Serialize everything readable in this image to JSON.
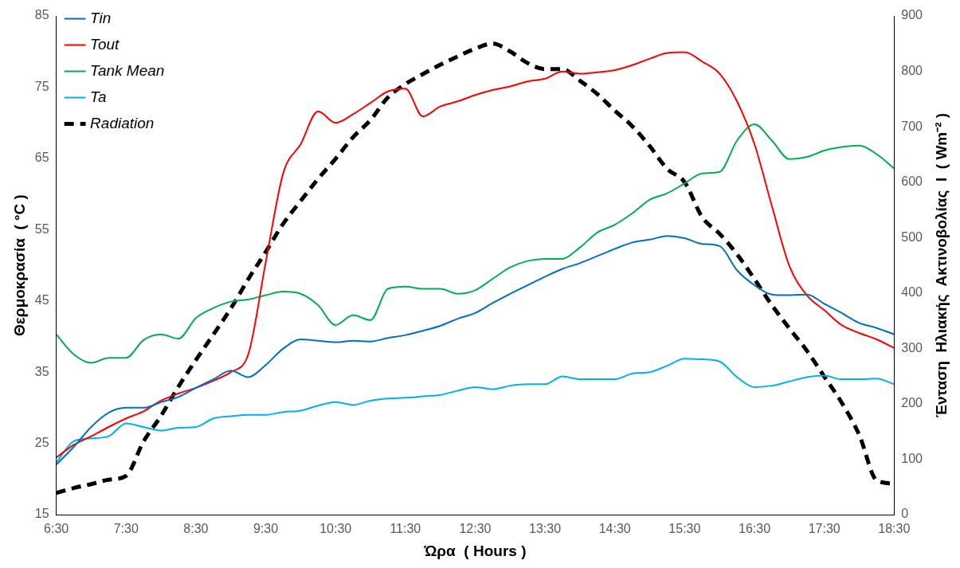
{
  "chart_data": {
    "type": "line",
    "xlabel": "Ώρα  ( Hours )",
    "ylabel": "Θερμοκρασία  ( °C )",
    "y2label": "Ένταση  Ηλιακής  Ακτινοβολίας  I  ( Wm⁻² )",
    "x": [
      6.5,
      6.75,
      7,
      7.25,
      7.5,
      7.75,
      8,
      8.25,
      8.5,
      8.75,
      9,
      9.25,
      9.5,
      9.75,
      10,
      10.25,
      10.5,
      10.75,
      11,
      11.25,
      11.5,
      11.75,
      12,
      12.25,
      12.5,
      12.75,
      13,
      13.25,
      13.5,
      13.75,
      14,
      14.25,
      14.5,
      14.75,
      15,
      15.25,
      15.5,
      15.75,
      16,
      16.25,
      16.5,
      16.75,
      17,
      17.25,
      17.5,
      17.75,
      18,
      18.25,
      18.5
    ],
    "xlim": [
      6.5,
      18.5
    ],
    "xticks": [
      {
        "value": 6.5,
        "label": "6:30"
      },
      {
        "value": 7.5,
        "label": "7:30"
      },
      {
        "value": 8.5,
        "label": "8:30"
      },
      {
        "value": 9.5,
        "label": "9:30"
      },
      {
        "value": 10.5,
        "label": "10:30"
      },
      {
        "value": 11.5,
        "label": "11:30"
      },
      {
        "value": 12.5,
        "label": "12:30"
      },
      {
        "value": 13.5,
        "label": "13:30"
      },
      {
        "value": 14.5,
        "label": "14:30"
      },
      {
        "value": 15.5,
        "label": "15:30"
      },
      {
        "value": 16.5,
        "label": "16:30"
      },
      {
        "value": 17.5,
        "label": "17:30"
      },
      {
        "value": 18.5,
        "label": "18:30"
      }
    ],
    "ylim": [
      15,
      85
    ],
    "yticks": [
      15,
      25,
      35,
      45,
      55,
      65,
      75,
      85
    ],
    "y2lim": [
      0,
      900
    ],
    "y2ticks": [
      0,
      100,
      200,
      300,
      400,
      500,
      600,
      700,
      800,
      900
    ],
    "grid": false,
    "legend": "top left",
    "marker": "none",
    "series": [
      {
        "name": "Tin",
        "color": "#0070c0",
        "values": [
          22.0,
          24.5,
          27.3,
          29.3,
          30.0,
          30.0,
          30.8,
          31.5,
          32.8,
          34.0,
          35.2,
          34.3,
          36.0,
          38.3,
          39.6,
          39.4,
          39.2,
          39.4,
          39.3,
          39.8,
          40.2,
          40.8,
          41.5,
          42.5,
          43.3,
          44.7,
          46.0,
          47.2,
          48.4,
          49.5,
          50.3,
          51.3,
          52.3,
          53.2,
          53.6,
          54.1,
          53.8,
          53.0,
          52.7,
          49.3,
          47.2,
          45.9,
          45.8,
          45.9,
          44.6,
          43.3,
          41.9,
          41.2,
          40.3
        ]
      },
      {
        "name": "Tout",
        "color": "#ff0000",
        "values": [
          23.0,
          24.8,
          26.0,
          27.3,
          28.5,
          29.5,
          31.0,
          32.0,
          32.8,
          33.8,
          35.0,
          37.5,
          50.4,
          62.9,
          67.0,
          71.6,
          70.0,
          71.2,
          72.8,
          74.4,
          74.8,
          70.9,
          72.3,
          73.0,
          73.9,
          74.6,
          75.1,
          75.8,
          76.2,
          77.2,
          76.9,
          77.1,
          77.4,
          78.1,
          79.0,
          79.8,
          79.9,
          78.6,
          76.9,
          73.0,
          67.0,
          58.3,
          49.9,
          45.8,
          43.7,
          41.6,
          40.5,
          39.6,
          38.4
        ]
      },
      {
        "name": "Tank Mean",
        "color": "#00b050",
        "values": [
          40.3,
          37.5,
          36.3,
          37.0,
          37.0,
          39.5,
          40.3,
          39.7,
          42.6,
          44.0,
          44.9,
          45.2,
          45.8,
          46.3,
          46.0,
          44.4,
          41.6,
          43.0,
          42.3,
          46.7,
          47.0,
          46.7,
          46.7,
          46.0,
          46.5,
          48.1,
          49.7,
          50.6,
          50.9,
          50.9,
          52.5,
          54.6,
          55.7,
          57.3,
          59.2,
          60.1,
          61.5,
          62.9,
          63.1,
          67.5,
          69.8,
          67.5,
          64.9,
          65.2,
          66.1,
          66.6,
          66.8,
          65.6,
          63.6
        ]
      },
      {
        "name": "Ta",
        "color": "#00b0f0",
        "values": [
          22.3,
          25.3,
          25.7,
          26.0,
          27.8,
          27.3,
          26.8,
          27.2,
          27.3,
          28.5,
          28.8,
          29.0,
          29.0,
          29.4,
          29.6,
          30.3,
          30.8,
          30.4,
          31.0,
          31.3,
          31.4,
          31.6,
          31.8,
          32.4,
          32.9,
          32.6,
          33.1,
          33.3,
          33.3,
          34.4,
          34.0,
          34.0,
          34.0,
          34.8,
          35.0,
          35.9,
          36.9,
          36.8,
          36.5,
          34.3,
          32.9,
          33.1,
          33.7,
          34.3,
          34.5,
          34.0,
          34.0,
          34.1,
          33.3
        ]
      },
      {
        "name": "Radiation",
        "color": "#000000",
        "axis": "y2",
        "line_style": "dashed",
        "values": [
          39,
          48,
          55,
          63,
          70,
          132,
          178,
          231,
          279,
          325,
          372,
          425,
          474,
          525,
          566,
          606,
          642,
          681,
          712,
          753,
          777,
          795,
          812,
          827,
          841,
          850,
          836,
          815,
          804,
          804,
          783,
          759,
          729,
          701,
          665,
          624,
          600,
          537,
          507,
          470,
          425,
          378,
          336,
          296,
          249,
          202,
          144,
          62,
          56
        ]
      }
    ]
  }
}
